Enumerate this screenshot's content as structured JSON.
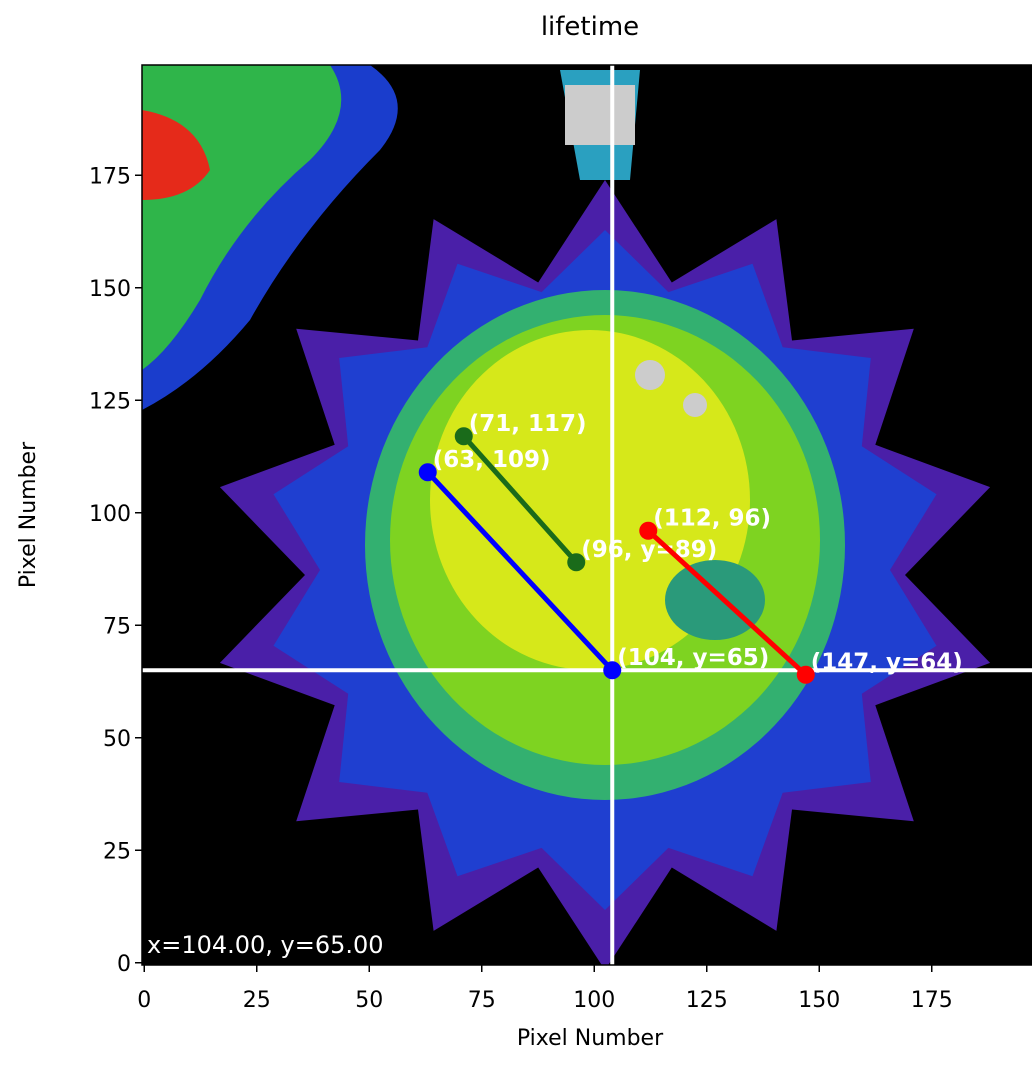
{
  "chart_data": {
    "type": "image",
    "title": "lifetime",
    "xlabel": "Pixel Number",
    "ylabel": "Pixel Number",
    "xlim": [
      -0.5,
      199.5
    ],
    "ylim": [
      -0.5,
      199.5
    ],
    "xticks": [
      0,
      25,
      50,
      75,
      100,
      125,
      150,
      175
    ],
    "yticks": [
      0,
      25,
      50,
      75,
      100,
      125,
      150,
      175
    ],
    "crosshair": {
      "x": 104,
      "y": 65,
      "color": "#ffffff"
    },
    "status": "x=104.00, y=65.00",
    "segments": [
      {
        "color": "#0000ff",
        "x": [
          63,
          104
        ],
        "y": [
          109,
          65
        ],
        "labels": [
          "(63, 109)",
          "(104, y=65)"
        ]
      },
      {
        "color": "#1a6b1a",
        "x": [
          71,
          96
        ],
        "y": [
          117,
          89
        ],
        "labels": [
          "(71, 117)",
          "(96, y=89)"
        ]
      },
      {
        "color": "#ff0000",
        "x": [
          112,
          147
        ],
        "y": [
          96,
          64
        ],
        "labels": [
          "(112, 96)",
          "(147, y=64)"
        ]
      }
    ]
  }
}
